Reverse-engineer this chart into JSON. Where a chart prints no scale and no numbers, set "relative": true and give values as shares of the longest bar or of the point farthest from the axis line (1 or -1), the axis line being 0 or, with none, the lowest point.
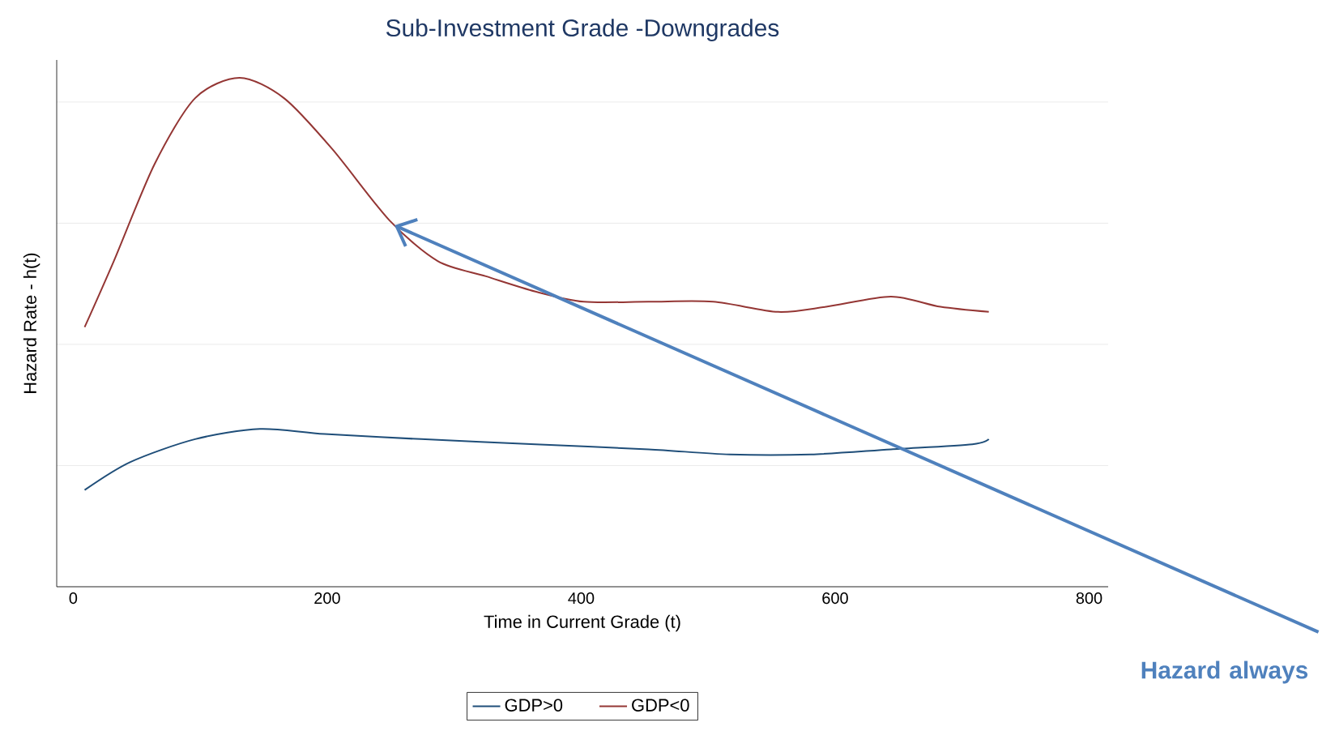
{
  "chart_data": {
    "type": "line",
    "title": "Sub-Investment Grade -Downgrades",
    "xlabel": "Time in Current Grade (t)",
    "ylabel": "Hazard Rate - h(t)",
    "relative": true,
    "grid": "y",
    "legend": "bottom",
    "xlim": [
      -13,
      815
    ],
    "xticks": [
      0,
      200,
      400,
      600,
      800
    ],
    "annotations": [
      {
        "text": "Hazard always",
        "x": 253,
        "y": 0.71
      }
    ],
    "series": [
      {
        "name": "GDP>0",
        "color": "#1f4e79",
        "x": [
          9,
          45,
          96,
          147,
          198,
          274,
          364,
          453,
          517,
          581,
          644,
          708,
          721
        ],
        "values": [
          0.19,
          0.245,
          0.29,
          0.31,
          0.3,
          0.29,
          0.28,
          0.27,
          0.26,
          0.26,
          0.27,
          0.28,
          0.29
        ]
      },
      {
        "name": "GDP<0",
        "color": "#943634",
        "x": [
          9,
          32,
          64,
          96,
          131,
          166,
          204,
          249,
          287,
          325,
          364,
          402,
          453,
          504,
          555,
          593,
          644,
          683,
          721
        ],
        "values": [
          0.51,
          0.64,
          0.83,
          0.96,
          1,
          0.96,
          0.86,
          0.72,
          0.64,
          0.61,
          0.58,
          0.56,
          0.56,
          0.56,
          0.54,
          0.55,
          0.57,
          0.55,
          0.54
        ]
      }
    ]
  }
}
